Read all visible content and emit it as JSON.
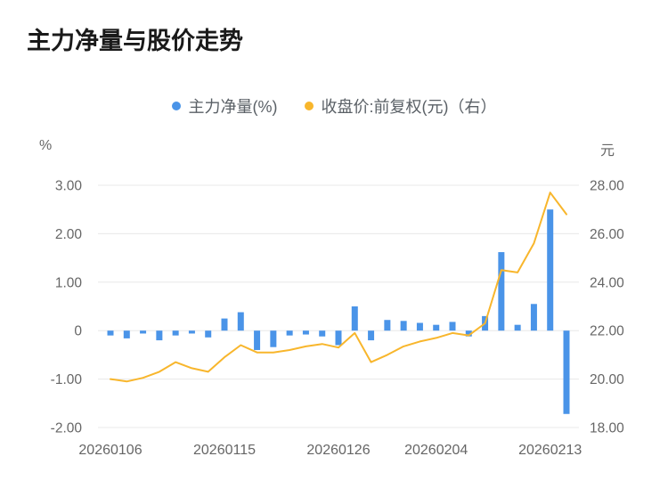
{
  "title": "主力净量与股价走势",
  "legend": {
    "bar": "主力净量(%)",
    "line": "收盘价:前复权(元)（右）"
  },
  "colors": {
    "bar": "#4A94E8",
    "line": "#F8B62C",
    "grid": "#E8E8E8",
    "axis_text": "#666666",
    "legend_text": "#5A6066",
    "title_text": "#1A1A1A",
    "background": "#FFFFFF"
  },
  "chart_data": {
    "type": "bar+line",
    "title": "主力净量与股价走势",
    "left_axis": {
      "unit": "%",
      "min": -2,
      "max": 3,
      "ticks": [
        3,
        2,
        1,
        0,
        -1,
        -2
      ],
      "tick_labels": [
        "3.00",
        "2.00",
        "1.00",
        "0",
        "-1.00",
        "-2.00"
      ]
    },
    "right_axis": {
      "unit": "元",
      "min": 18,
      "max": 28,
      "ticks": [
        28,
        26,
        24,
        22,
        20,
        18
      ],
      "tick_labels": [
        "28.00",
        "26.00",
        "24.00",
        "22.00",
        "20.00",
        "18.00"
      ]
    },
    "x_ticks": [
      {
        "index": 0,
        "label": "20260106"
      },
      {
        "index": 7,
        "label": "20260115"
      },
      {
        "index": 14,
        "label": "20260126"
      },
      {
        "index": 20,
        "label": "20260204"
      },
      {
        "index": 27,
        "label": "20260213"
      }
    ],
    "grid": true,
    "legend_position": "top-center",
    "series": [
      {
        "name": "主力净量(%)",
        "type": "bar",
        "axis": "left",
        "color": "#4A94E8",
        "values": [
          -0.1,
          -0.16,
          -0.06,
          -0.2,
          -0.1,
          -0.06,
          -0.14,
          0.25,
          0.38,
          -0.4,
          -0.34,
          -0.1,
          -0.08,
          -0.12,
          -0.3,
          0.5,
          -0.2,
          0.22,
          0.2,
          0.16,
          0.12,
          0.18,
          -0.12,
          0.3,
          1.62,
          0.12,
          0.55,
          2.5,
          -1.72
        ]
      },
      {
        "name": "收盘价:前复权(元)（右）",
        "type": "line",
        "axis": "right",
        "color": "#F8B62C",
        "values": [
          20.0,
          19.9,
          20.05,
          20.3,
          20.7,
          20.45,
          20.3,
          20.9,
          21.4,
          21.1,
          21.1,
          21.2,
          21.35,
          21.45,
          21.3,
          21.9,
          20.7,
          21.0,
          21.35,
          21.55,
          21.7,
          21.9,
          21.8,
          22.3,
          24.5,
          24.4,
          25.6,
          27.7,
          26.8
        ]
      }
    ]
  }
}
